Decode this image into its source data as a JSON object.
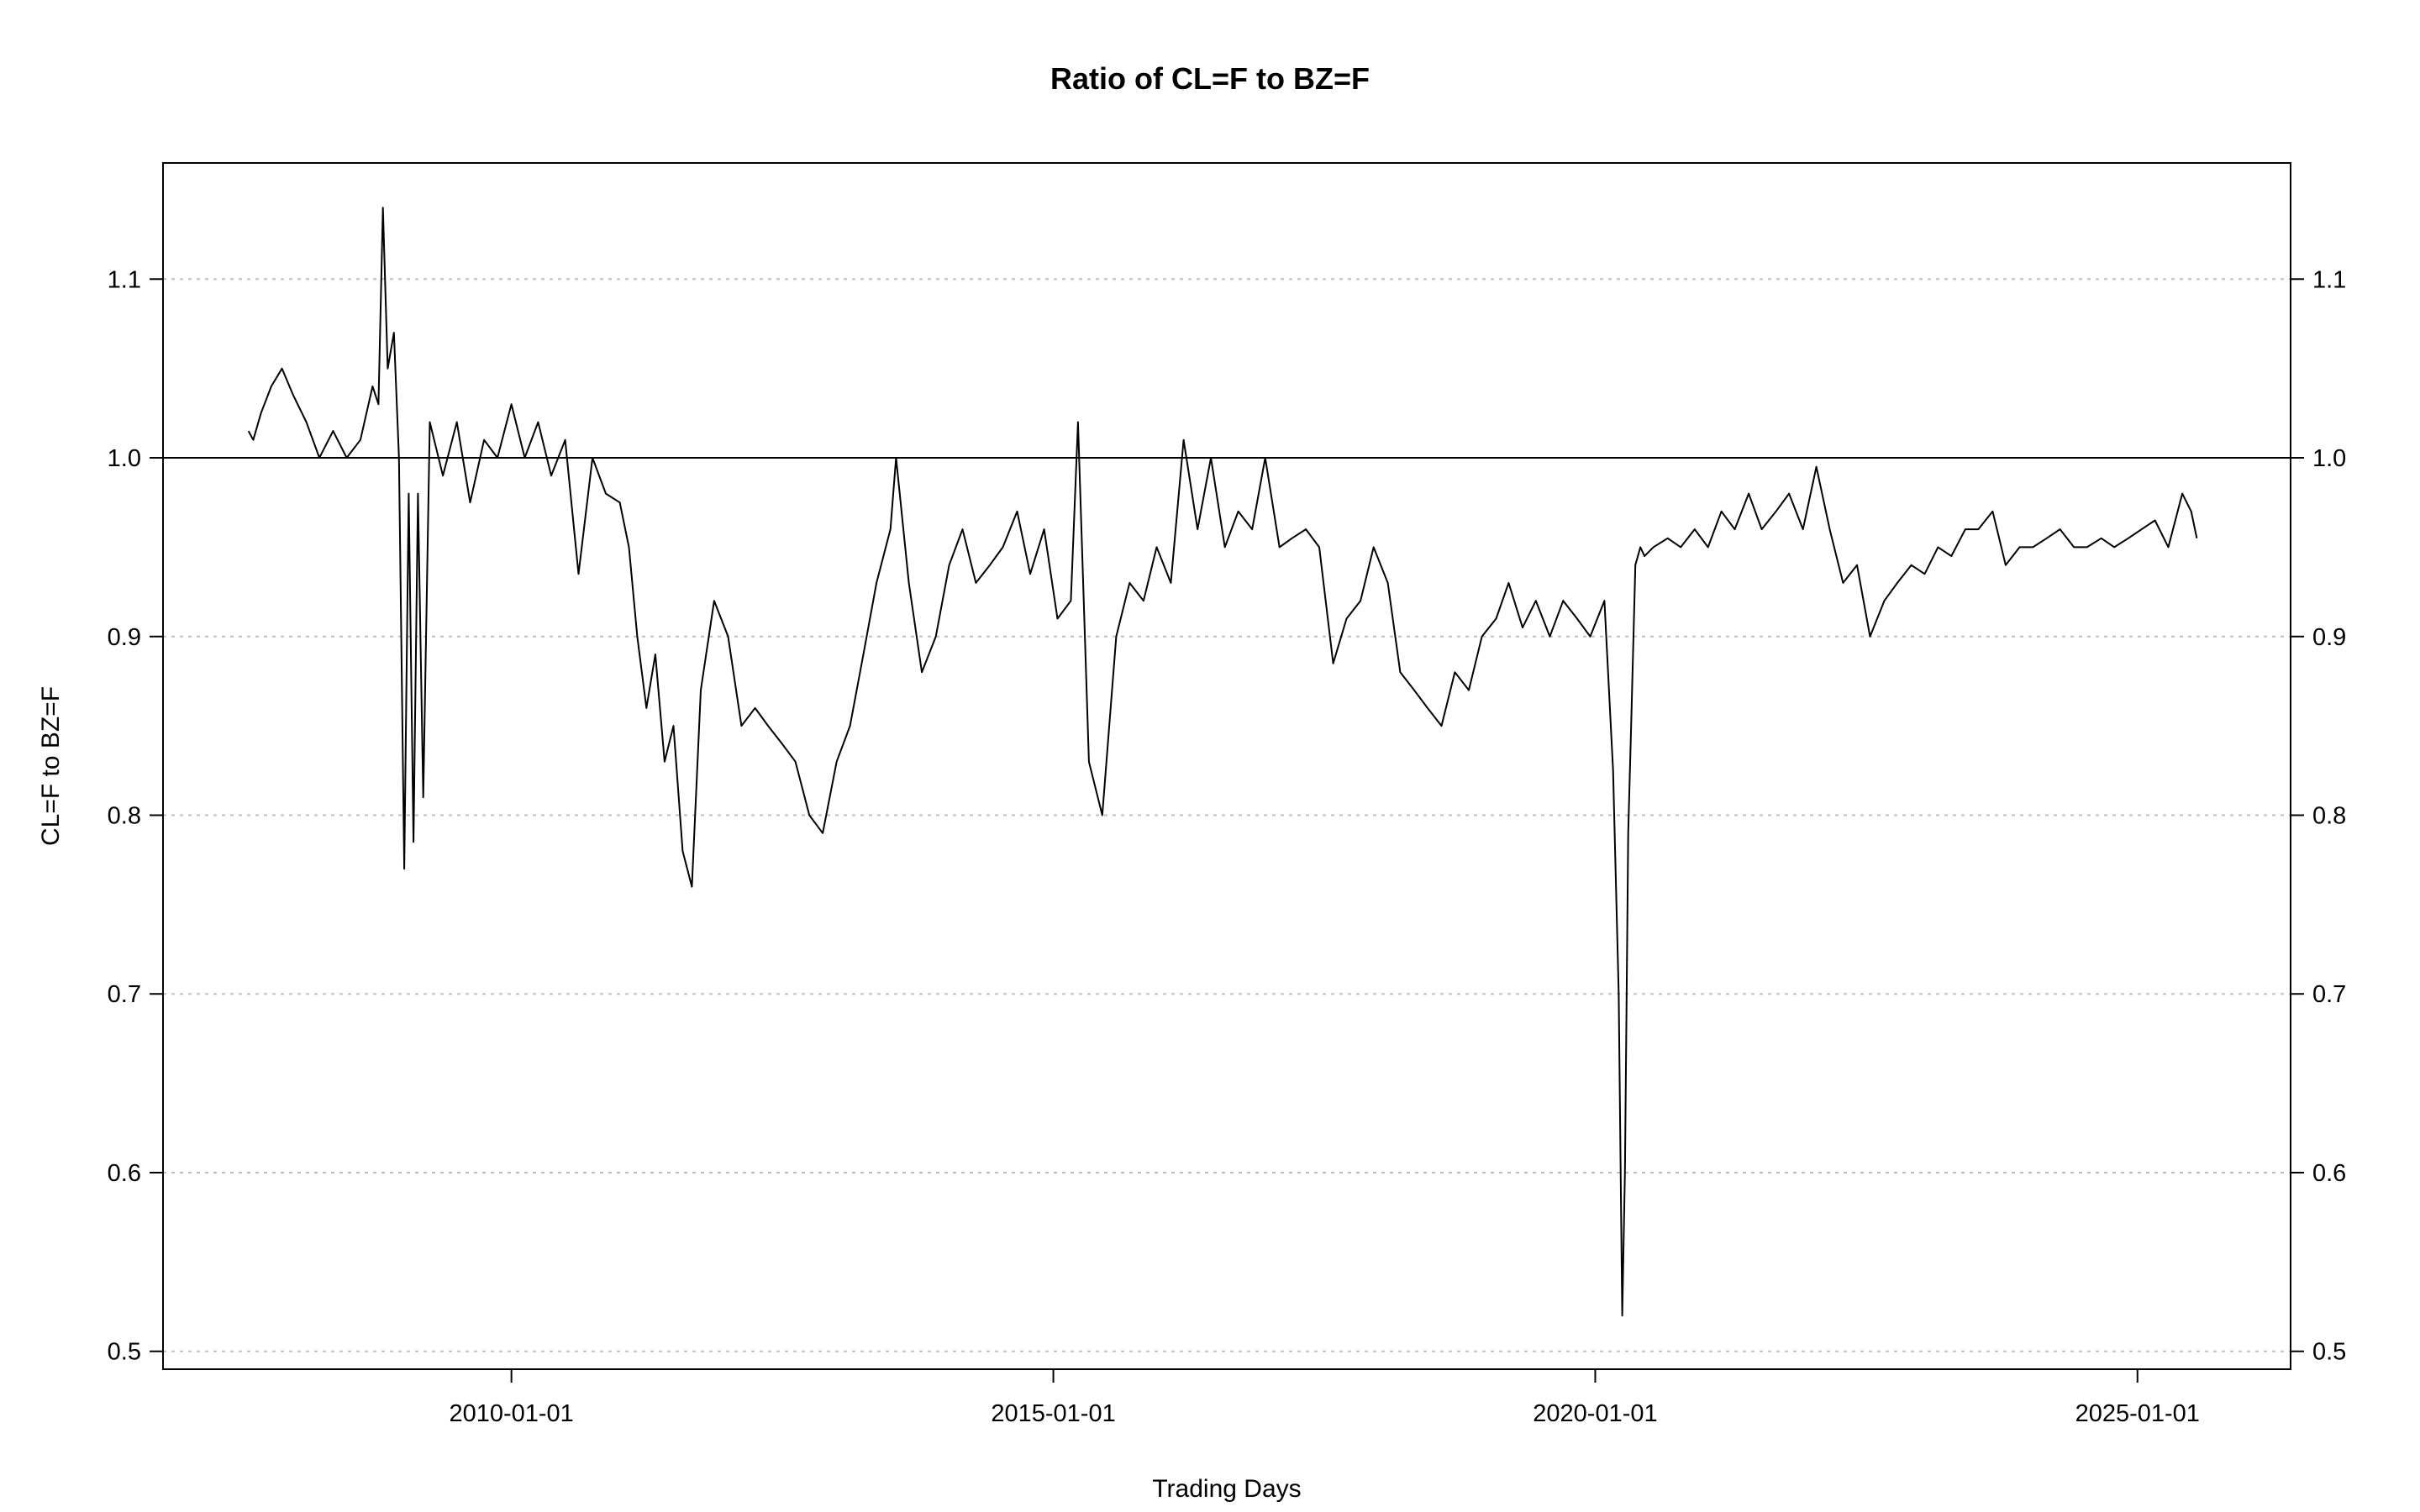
{
  "chart_data": {
    "type": "line",
    "title": "Ratio of CL=F to BZ=F",
    "xlabel": "Trading Days",
    "ylabel": "CL=F to BZ=F",
    "xlim": [
      "2006-10-15",
      "2026-06-01"
    ],
    "ylim": [
      0.49,
      1.165
    ],
    "y_ticks": [
      0.5,
      0.6,
      0.7,
      0.8,
      0.9,
      1.0,
      1.1
    ],
    "y_tick_labels": [
      "0.5",
      "0.6",
      "0.7",
      "0.8",
      "0.9",
      "1.0",
      "1.1"
    ],
    "x_ticks": [
      "2010-01-01",
      "2015-01-01",
      "2020-01-01",
      "2025-01-01"
    ],
    "x_tick_labels": [
      "2010-01-01",
      "2015-01-01",
      "2020-01-01",
      "2025-01-01"
    ],
    "grid": "horizontal-dotted",
    "reference_line": 1.0,
    "right_axis": true,
    "colors": {
      "line": "#000000",
      "grid": "#bfbfbf",
      "reference": "#000000"
    },
    "series": [
      {
        "x": [
          "2007-07-30",
          "2007-08-15",
          "2007-09-10",
          "2007-10-15",
          "2007-11-20",
          "2007-12-28",
          "2008-02-10",
          "2008-03-25",
          "2008-05-10",
          "2008-06-25",
          "2008-08-10",
          "2008-09-20",
          "2008-10-10",
          "2008-10-25",
          "2008-11-10",
          "2008-12-01",
          "2008-12-18",
          "2009-01-05",
          "2009-01-20",
          "2009-02-05",
          "2009-02-20",
          "2009-03-10",
          "2009-04-01",
          "2009-05-15",
          "2009-07-01",
          "2009-08-15",
          "2009-10-01",
          "2009-11-15",
          "2010-01-01",
          "2010-02-15",
          "2010-04-01",
          "2010-05-15",
          "2010-07-01",
          "2010-08-15",
          "2010-10-01",
          "2010-11-15",
          "2011-01-01",
          "2011-02-01",
          "2011-03-01",
          "2011-04-01",
          "2011-05-01",
          "2011-06-01",
          "2011-07-01",
          "2011-08-01",
          "2011-09-01",
          "2011-10-01",
          "2011-11-15",
          "2012-01-01",
          "2012-02-15",
          "2012-04-01",
          "2012-05-15",
          "2012-07-01",
          "2012-08-15",
          "2012-10-01",
          "2012-11-15",
          "2013-01-01",
          "2013-02-15",
          "2013-04-01",
          "2013-05-15",
          "2013-07-01",
          "2013-07-20",
          "2013-09-01",
          "2013-10-15",
          "2013-12-01",
          "2014-01-15",
          "2014-03-01",
          "2014-04-15",
          "2014-06-01",
          "2014-07-15",
          "2014-09-01",
          "2014-10-15",
          "2014-12-01",
          "2015-01-15",
          "2015-03-01",
          "2015-03-25",
          "2015-05-01",
          "2015-06-15",
          "2015-08-01",
          "2015-09-15",
          "2015-11-01",
          "2015-12-15",
          "2016-02-01",
          "2016-03-15",
          "2016-05-01",
          "2016-06-15",
          "2016-08-01",
          "2016-09-15",
          "2016-11-01",
          "2016-12-15",
          "2017-02-01",
          "2017-03-15",
          "2017-05-01",
          "2017-06-15",
          "2017-08-01",
          "2017-09-15",
          "2017-11-01",
          "2017-12-15",
          "2018-02-01",
          "2018-03-15",
          "2018-05-01",
          "2018-06-15",
          "2018-08-01",
          "2018-09-15",
          "2018-11-01",
          "2018-12-15",
          "2019-02-01",
          "2019-03-15",
          "2019-05-01",
          "2019-06-15",
          "2019-08-01",
          "2019-09-15",
          "2019-11-01",
          "2019-12-15",
          "2020-02-01",
          "2020-03-01",
          "2020-03-20",
          "2020-04-01",
          "2020-04-10",
          "2020-04-21",
          "2020-05-01",
          "2020-05-15",
          "2020-06-01",
          "2020-06-15",
          "2020-07-15",
          "2020-09-01",
          "2020-10-15",
          "2020-12-01",
          "2021-01-15",
          "2021-03-01",
          "2021-04-15",
          "2021-06-01",
          "2021-07-15",
          "2021-09-01",
          "2021-10-15",
          "2021-12-01",
          "2022-01-15",
          "2022-03-01",
          "2022-04-15",
          "2022-06-01",
          "2022-07-15",
          "2022-09-01",
          "2022-10-15",
          "2022-12-01",
          "2023-01-15",
          "2023-03-01",
          "2023-04-15",
          "2023-06-01",
          "2023-07-15",
          "2023-09-01",
          "2023-10-15",
          "2023-12-01",
          "2024-01-15",
          "2024-03-01",
          "2024-04-15",
          "2024-06-01",
          "2024-07-15",
          "2024-09-01",
          "2024-10-15",
          "2024-12-01",
          "2025-01-15",
          "2025-03-01",
          "2025-04-15",
          "2025-06-01",
          "2025-07-01",
          "2025-07-20"
        ],
        "values": [
          1.015,
          1.01,
          1.025,
          1.04,
          1.05,
          1.035,
          1.02,
          1.0,
          1.015,
          1.0,
          1.01,
          1.04,
          1.03,
          1.14,
          1.05,
          1.07,
          1.0,
          0.77,
          0.98,
          0.785,
          0.98,
          0.81,
          1.02,
          0.99,
          1.02,
          0.975,
          1.01,
          1.0,
          1.03,
          1.0,
          1.02,
          0.99,
          1.01,
          0.935,
          1.0,
          0.98,
          0.975,
          0.95,
          0.9,
          0.86,
          0.89,
          0.83,
          0.85,
          0.78,
          0.76,
          0.87,
          0.92,
          0.9,
          0.85,
          0.86,
          0.85,
          0.84,
          0.83,
          0.8,
          0.79,
          0.83,
          0.85,
          0.89,
          0.93,
          0.96,
          1.0,
          0.93,
          0.88,
          0.9,
          0.94,
          0.96,
          0.93,
          0.94,
          0.95,
          0.97,
          0.935,
          0.96,
          0.91,
          0.92,
          1.02,
          0.83,
          0.8,
          0.9,
          0.93,
          0.92,
          0.95,
          0.93,
          1.01,
          0.96,
          1.0,
          0.95,
          0.97,
          0.96,
          1.0,
          0.95,
          0.955,
          0.96,
          0.95,
          0.885,
          0.91,
          0.92,
          0.95,
          0.93,
          0.88,
          0.87,
          0.86,
          0.85,
          0.88,
          0.87,
          0.9,
          0.91,
          0.93,
          0.905,
          0.92,
          0.9,
          0.92,
          0.91,
          0.9,
          0.92,
          0.825,
          0.7,
          0.52,
          0.6,
          0.79,
          0.85,
          0.94,
          0.95,
          0.945,
          0.95,
          0.955,
          0.95,
          0.96,
          0.95,
          0.97,
          0.96,
          0.98,
          0.96,
          0.97,
          0.98,
          0.96,
          0.995,
          0.96,
          0.93,
          0.94,
          0.9,
          0.92,
          0.93,
          0.94,
          0.935,
          0.95,
          0.945,
          0.96,
          0.96,
          0.97,
          0.94,
          0.95,
          0.95,
          0.955,
          0.96,
          0.95,
          0.95,
          0.955,
          0.95,
          0.955,
          0.96,
          0.965,
          0.95,
          0.98,
          0.97,
          0.955
        ]
      }
    ]
  }
}
